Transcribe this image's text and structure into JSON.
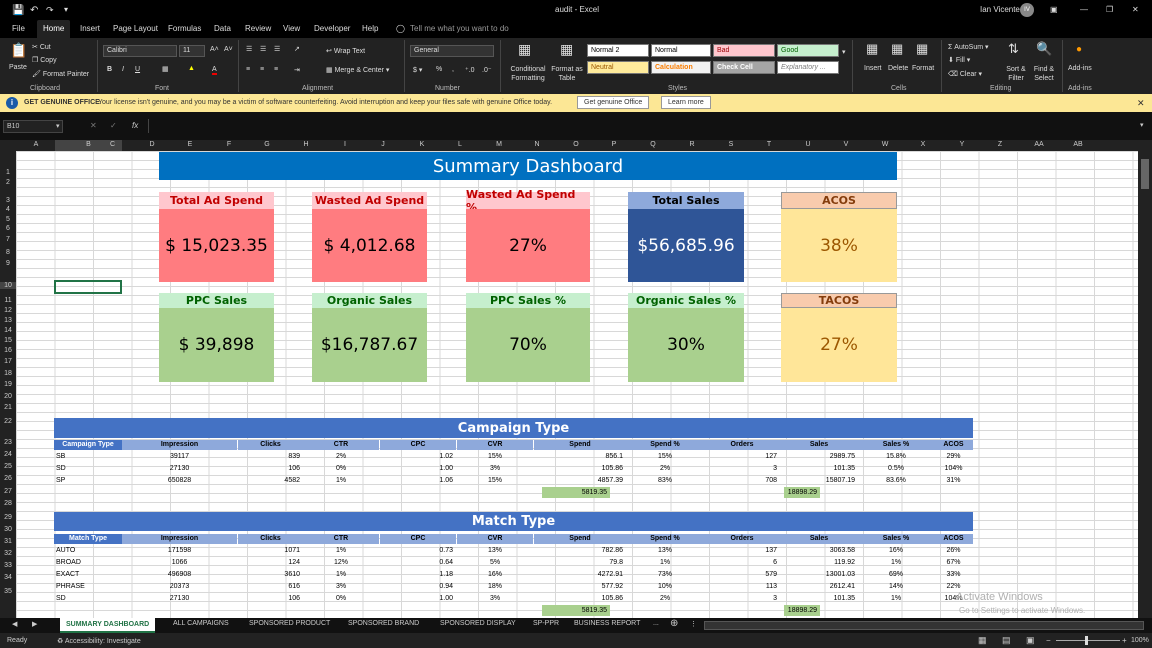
{
  "window": {
    "title": "audit  -  Excel",
    "user": "Ian Vicente",
    "user_initials": "IV"
  },
  "menu": [
    "File",
    "Home",
    "Insert",
    "Page Layout",
    "Formulas",
    "Data",
    "Review",
    "View",
    "Developer",
    "Help"
  ],
  "tell_me": "Tell me what you want to do",
  "ribbon": {
    "clipboard": {
      "paste": "Paste",
      "cut": "Cut",
      "copy": "Copy",
      "format_painter": "Format Painter",
      "label": "Clipboard"
    },
    "font": {
      "name": "Calibri",
      "size": "11",
      "label": "Font"
    },
    "alignment": {
      "wrap": "Wrap Text",
      "merge": "Merge & Center",
      "label": "Alignment"
    },
    "number": {
      "format": "General",
      "label": "Number"
    },
    "styles": {
      "conditional": "Conditional Formatting",
      "format_table": "Format as Table",
      "normal2": "Normal 2",
      "normal": "Normal",
      "bad": "Bad",
      "good": "Good",
      "neutral": "Neutral",
      "calculation": "Calculation",
      "check_cell": "Check Cell",
      "explanatory": "Explanatory ...",
      "label": "Styles"
    },
    "cells": {
      "insert": "Insert",
      "delete": "Delete",
      "format": "Format",
      "label": "Cells"
    },
    "editing": {
      "autosum": "AutoSum",
      "fill": "Fill",
      "clear": "Clear",
      "sort": "Sort & Filter",
      "find": "Find & Select",
      "label": "Editing"
    },
    "addins": {
      "addins": "Add-ins",
      "label": "Add-ins"
    }
  },
  "message_bar": {
    "title": "GET GENUINE OFFICE",
    "text": "Your license isn't genuine, and you may be a victim of software counterfeiting. Avoid interruption and keep your files safe with genuine Office today.",
    "btn1": "Get genuine Office",
    "btn2": "Learn more"
  },
  "formula_bar": {
    "name_box": "B10",
    "fx": "fx"
  },
  "columns": [
    "A",
    "B",
    "C",
    "D",
    "E",
    "F",
    "G",
    "H",
    "I",
    "J",
    "K",
    "L",
    "M",
    "N",
    "O",
    "P",
    "Q",
    "R",
    "S",
    "T",
    "U",
    "V",
    "W",
    "X",
    "Y",
    "Z",
    "AA",
    "AB"
  ],
  "rows": [
    "1",
    "2",
    "3",
    "4",
    "5",
    "6",
    "7",
    "8",
    "9",
    "10",
    "11",
    "12",
    "13",
    "14",
    "15",
    "16",
    "17",
    "18",
    "19",
    "20",
    "21",
    "22",
    "23",
    "24",
    "25",
    "26",
    "27",
    "28",
    "29",
    "30",
    "31",
    "32",
    "33",
    "34",
    "35"
  ],
  "dashboard": {
    "title": "Summary Dashboard",
    "cards_row1": [
      {
        "label": "Total Ad Spend",
        "value": "$  15,023.35"
      },
      {
        "label": "Wasted Ad Spend",
        "value": "$     4,012.68"
      },
      {
        "label": "Wasted Ad Spend %",
        "value": "27%"
      },
      {
        "label": "Total Sales",
        "value": "$56,685.96"
      },
      {
        "label": "ACOS",
        "value": "38%"
      }
    ],
    "cards_row2": [
      {
        "label": "PPC Sales",
        "value": "$        39,898"
      },
      {
        "label": "Organic Sales",
        "value": "$16,787.67"
      },
      {
        "label": "PPC Sales %",
        "value": "70%"
      },
      {
        "label": "Organic Sales %",
        "value": "30%"
      },
      {
        "label": "TACOS",
        "value": "27%"
      }
    ]
  },
  "campaign": {
    "title": "Campaign Type",
    "headers": [
      "Campaign Type",
      "Impression",
      "Clicks",
      "CTR",
      "CPC",
      "CVR",
      "Spend",
      "Spend %",
      "Orders",
      "Sales",
      "Sales %",
      "ACOS"
    ],
    "rows": [
      [
        "SB",
        "39117",
        "839",
        "2%",
        "1.02",
        "15%",
        "856.1",
        "15%",
        "127",
        "2989.75",
        "15.8%",
        "29%"
      ],
      [
        "SD",
        "27130",
        "106",
        "0%",
        "1.00",
        "3%",
        "105.86",
        "2%",
        "3",
        "101.35",
        "0.5%",
        "104%"
      ],
      [
        "SP",
        "650828",
        "4582",
        "1%",
        "1.06",
        "15%",
        "4857.39",
        "83%",
        "708",
        "15807.19",
        "83.6%",
        "31%"
      ]
    ],
    "spend_total": "5819.35",
    "sales_total": "18898.29"
  },
  "match": {
    "title": "Match Type",
    "headers": [
      "Match Type",
      "Impression",
      "Clicks",
      "CTR",
      "CPC",
      "CVR",
      "Spend",
      "Spend %",
      "Orders",
      "Sales",
      "Sales %",
      "ACOS"
    ],
    "rows": [
      [
        "AUTO",
        "171598",
        "1071",
        "1%",
        "0.73",
        "13%",
        "782.86",
        "13%",
        "137",
        "3063.58",
        "16%",
        "26%"
      ],
      [
        "BROAD",
        "1066",
        "124",
        "12%",
        "0.64",
        "5%",
        "79.8",
        "1%",
        "6",
        "119.92",
        "1%",
        "67%"
      ],
      [
        "EXACT",
        "496908",
        "3610",
        "1%",
        "1.18",
        "16%",
        "4272.91",
        "73%",
        "579",
        "13001.03",
        "69%",
        "33%"
      ],
      [
        "PHRASE",
        "20373",
        "616",
        "3%",
        "0.94",
        "18%",
        "577.92",
        "10%",
        "113",
        "2612.41",
        "14%",
        "22%"
      ],
      [
        "SD",
        "27130",
        "106",
        "0%",
        "1.00",
        "3%",
        "105.86",
        "2%",
        "3",
        "101.35",
        "1%",
        "104%"
      ]
    ],
    "spend_total": "5819.35",
    "sales_total": "18898.29"
  },
  "watermark": {
    "line1": "Activate Windows",
    "line2": "Go to Settings to activate Windows."
  },
  "sheets": [
    "SUMMARY DASHBOARD",
    "ALL CAMPAIGNS",
    "SPONSORED PRODUCT",
    "SPONSORED BRAND",
    "SPONSORED DISPLAY",
    "SP-PPR",
    "BUSINESS REPORT",
    "..."
  ],
  "status": {
    "ready": "Ready",
    "accessibility": "Accessibility: Investigate",
    "zoom": "100%"
  }
}
